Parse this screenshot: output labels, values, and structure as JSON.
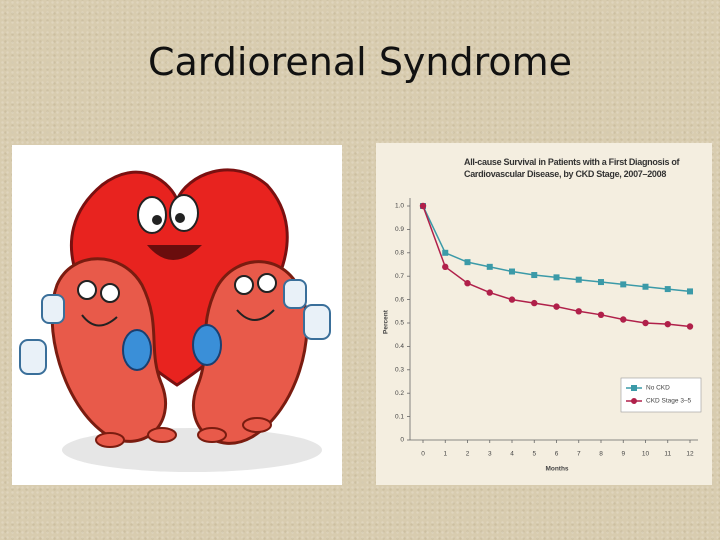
{
  "slide_title": "Cardiorenal Syndrome",
  "chart_data": {
    "type": "line",
    "title": "All-cause Survival in Patients with a First Diagnosis of Cardiovascular Disease, by CKD Stage, 2007–2008",
    "x_label": "Months",
    "y_label": "Percent",
    "x": [
      0,
      1,
      2,
      3,
      4,
      5,
      6,
      7,
      8,
      9,
      10,
      11,
      12
    ],
    "series": [
      {
        "name": "No CKD",
        "color": "#3b9aa8",
        "marker": "square",
        "values": [
          1.0,
          0.8,
          0.76,
          0.74,
          0.72,
          0.705,
          0.695,
          0.685,
          0.675,
          0.665,
          0.655,
          0.645,
          0.635
        ]
      },
      {
        "name": "CKD Stage 3–5",
        "color": "#b0204a",
        "marker": "circle",
        "values": [
          1.0,
          0.74,
          0.67,
          0.63,
          0.6,
          0.585,
          0.57,
          0.55,
          0.535,
          0.515,
          0.5,
          0.495,
          0.485
        ]
      }
    ],
    "xlim": [
      0,
      12
    ],
    "xticks": [
      0,
      1,
      2,
      3,
      4,
      5,
      6,
      7,
      8,
      9,
      10,
      11,
      12
    ],
    "ylim": [
      0,
      1
    ],
    "yticks": [
      0,
      0.1,
      0.2,
      0.3,
      0.4,
      0.5,
      0.6,
      0.7,
      0.8,
      0.9,
      {
        "value": 1,
        "label": "1.0"
      }
    ],
    "grid": false,
    "legend": "lower right"
  }
}
